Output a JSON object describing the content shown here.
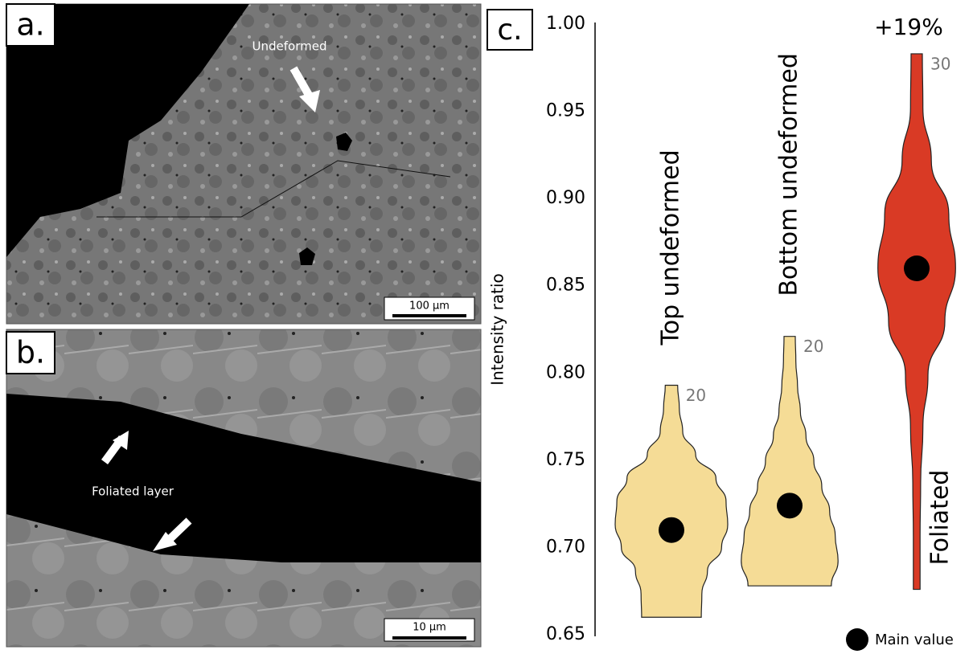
{
  "panels": {
    "a": {
      "label": "a.",
      "annotation": "Undeformed",
      "scale_bar": "100 µm"
    },
    "b": {
      "label": "b.",
      "annotation": "Foliated layer",
      "scale_bar": "10 µm"
    }
  },
  "chart_data": {
    "type": "violin",
    "panel_label": "c.",
    "y_label": "Intensity ratio",
    "ylim": [
      0.65,
      1.0
    ],
    "yticks": [
      0.65,
      {
        "value": 0.7,
        "label": "0.70"
      },
      0.75,
      {
        "value": 0.8,
        "label": "0.80"
      },
      0.85,
      {
        "value": 0.9,
        "label": "0.90"
      },
      0.95,
      {
        "value": 1.0,
        "label": "1.00"
      }
    ],
    "series": [
      {
        "name": "Top undeformed",
        "color": "#f5dc96",
        "min": 0.66,
        "max": 0.793,
        "main_value": 0.71,
        "count": 20,
        "density": [
          0.53,
          0.54,
          0.64,
          0.89,
          1,
          0.97,
          0.79,
          0.43,
          0.2,
          0.14,
          0.11
        ]
      },
      {
        "name": "Bottom undeformed",
        "color": "#f5dc96",
        "min": 0.678,
        "max": 0.821,
        "main_value": 0.724,
        "count": 20,
        "density": [
          0.74,
          0.86,
          0.81,
          0.71,
          0.57,
          0.43,
          0.29,
          0.19,
          0.14,
          0.11,
          0.1
        ]
      },
      {
        "name": "Foliated",
        "color": "#d93a25",
        "min": 0.676,
        "max": 0.983,
        "main_value": 0.86,
        "count": 30,
        "density": [
          0.06,
          0.06,
          0.07,
          0.11,
          0.2,
          0.5,
          0.69,
          0.57,
          0.26,
          0.11,
          0.1
        ]
      }
    ],
    "annotation": "+19%",
    "legend_label": "Main value"
  }
}
